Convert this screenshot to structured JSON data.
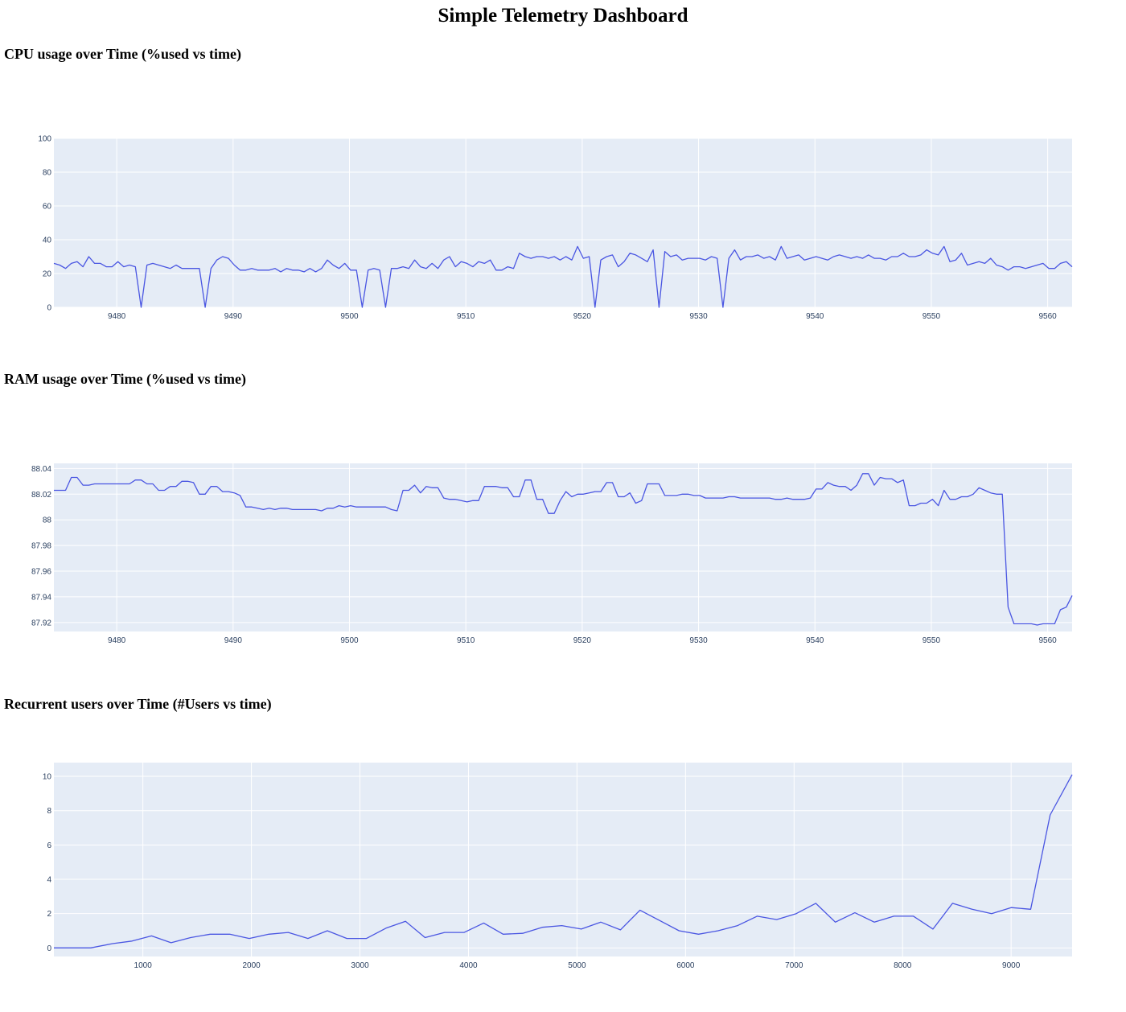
{
  "page_title": "Simple Telemetry Dashboard",
  "colors": {
    "line": "#4a56e2",
    "plot_bg": "#e5ecf6",
    "grid": "#ffffff",
    "tick_text": "#2a3f5f"
  },
  "chart_data": [
    {
      "id": "cpu",
      "type": "line",
      "title": "CPU usage over Time (%used vs time)",
      "xlim": [
        9474.6,
        9562.1
      ],
      "ylim": [
        0,
        100
      ],
      "xticks": [
        9480,
        9490,
        9500,
        9510,
        9520,
        9530,
        9540,
        9550,
        9560
      ],
      "xtick_labels": [
        "9480",
        "9490",
        "9500",
        "9510",
        "9520",
        "9530",
        "9540",
        "9550",
        "9560"
      ],
      "yticks": [
        0,
        20,
        40,
        60,
        80,
        100
      ],
      "ytick_labels": [
        "0",
        "20",
        "40",
        "60",
        "80",
        "100"
      ],
      "grid": true,
      "x": [
        9474.6,
        9475.1,
        9475.6,
        9476.1,
        9476.6,
        9477.1,
        9477.6,
        9478.1,
        9478.6,
        9479.1,
        9479.6,
        9480.1,
        9480.6,
        9481.1,
        9481.6,
        9482.1,
        9482.6,
        9483.1,
        9483.6,
        9484.1,
        9484.6,
        9485.1,
        9485.6,
        9486.1,
        9486.6,
        9487.1,
        9487.6,
        9488.1,
        9488.6,
        9489.1,
        9489.6,
        9490.1,
        9490.6,
        9491.1,
        9491.6,
        9492.1,
        9492.6,
        9493.1,
        9493.6,
        9494.1,
        9494.6,
        9495.1,
        9495.6,
        9496.1,
        9496.6,
        9497.1,
        9497.6,
        9498.1,
        9498.6,
        9499.1,
        9499.6,
        9500.1,
        9500.6,
        9501.1,
        9501.6,
        9502.1,
        9502.6,
        9503.1,
        9503.6,
        9504.1,
        9504.6,
        9505.1,
        9505.6,
        9506.1,
        9506.6,
        9507.1,
        9507.6,
        9508.1,
        9508.6,
        9509.1,
        9509.6,
        9510.1,
        9510.6,
        9511.1,
        9511.6,
        9512.1,
        9512.6,
        9513.1,
        9513.6,
        9514.1,
        9514.6,
        9515.1,
        9515.6,
        9516.1,
        9516.6,
        9517.1,
        9517.6,
        9518.1,
        9518.6,
        9519.1,
        9519.6,
        9520.1,
        9520.6,
        9521.1,
        9521.6,
        9522.1,
        9522.6,
        9523.1,
        9523.6,
        9524.1,
        9524.6,
        9525.1,
        9525.6,
        9526.1,
        9526.6,
        9527.1,
        9527.6,
        9528.1,
        9528.6,
        9529.1,
        9529.6,
        9530.1,
        9530.6,
        9531.1,
        9531.6,
        9532.1,
        9532.6,
        9533.1,
        9533.6,
        9534.1,
        9534.6,
        9535.1,
        9535.6,
        9536.1,
        9536.6,
        9537.1,
        9537.6,
        9538.1,
        9538.6,
        9539.1,
        9539.6,
        9540.1,
        9540.6,
        9541.1,
        9541.6,
        9542.1,
        9542.6,
        9543.1,
        9543.6,
        9544.1,
        9544.6,
        9545.1,
        9545.6,
        9546.1,
        9546.6,
        9547.1,
        9547.6,
        9548.1,
        9548.6,
        9549.1,
        9549.6,
        9550.1,
        9550.6,
        9551.1,
        9551.6,
        9552.1,
        9552.6,
        9553.1,
        9553.6,
        9554.1,
        9554.6,
        9555.1,
        9555.6,
        9556.1,
        9556.6,
        9557.1,
        9557.6,
        9558.1,
        9558.6,
        9559.1,
        9559.6,
        9560.1,
        9560.6,
        9561.1,
        9561.6,
        9562.1
      ],
      "y": [
        26,
        25,
        23,
        26,
        27,
        24,
        30,
        26,
        26,
        24,
        24,
        27,
        24,
        25,
        24,
        0,
        25,
        26,
        25,
        24,
        23,
        25,
        23,
        23,
        23,
        23,
        0,
        23,
        28,
        30,
        29,
        25,
        22,
        22,
        23,
        22,
        22,
        22,
        23,
        21,
        23,
        22,
        22,
        21,
        23,
        21,
        23,
        28,
        25,
        23,
        26,
        22,
        22,
        0,
        22,
        23,
        22,
        0,
        23,
        23,
        24,
        23,
        28,
        24,
        23,
        26,
        23,
        28,
        30,
        24,
        27,
        26,
        24,
        27,
        26,
        28,
        22,
        22,
        24,
        23,
        32,
        30,
        29,
        30,
        30,
        29,
        30,
        28,
        30,
        28,
        36,
        29,
        30,
        0,
        28,
        30,
        31,
        24,
        27,
        32,
        31,
        29,
        27,
        34,
        0,
        33,
        30,
        31,
        28,
        29,
        29,
        29,
        28,
        30,
        29,
        0,
        29,
        34,
        28,
        30,
        30,
        31,
        29,
        30,
        28,
        36,
        29,
        30,
        31,
        28,
        29,
        30,
        29,
        28,
        30,
        31,
        30,
        29,
        30,
        29,
        31,
        29,
        29,
        28,
        30,
        30,
        32,
        30,
        30,
        31,
        34,
        32,
        31,
        36,
        27,
        28,
        32,
        25,
        26,
        27,
        26,
        29,
        25,
        24,
        22,
        24,
        24,
        23,
        24,
        25,
        26,
        23,
        23,
        26,
        27,
        24
      ]
    },
    {
      "id": "ram",
      "type": "line",
      "title": "RAM usage over Time (%used vs time)",
      "xlim": [
        9474.6,
        9562.1
      ],
      "ylim": [
        87.913,
        88.044
      ],
      "xticks": [
        9480,
        9490,
        9500,
        9510,
        9520,
        9530,
        9540,
        9550,
        9560
      ],
      "xtick_labels": [
        "9480",
        "9490",
        "9500",
        "9510",
        "9520",
        "9530",
        "9540",
        "9550",
        "9560"
      ],
      "yticks": [
        87.92,
        87.94,
        87.96,
        87.98,
        88.0,
        88.02,
        88.04
      ],
      "ytick_labels": [
        "87.92",
        "87.94",
        "87.96",
        "87.98",
        "88",
        "88.02",
        "88.04"
      ],
      "grid": true,
      "x": [
        9474.6,
        9475.6,
        9476.1,
        9476.6,
        9477.1,
        9477.6,
        9478.1,
        9480.1,
        9480.6,
        9481.1,
        9481.6,
        9482.1,
        9482.6,
        9483.1,
        9483.6,
        9484.1,
        9484.6,
        9485.1,
        9485.6,
        9486.1,
        9486.6,
        9487.1,
        9487.6,
        9488.1,
        9488.6,
        9489.1,
        9489.6,
        9490.1,
        9490.6,
        9491.1,
        9491.6,
        9492.1,
        9492.6,
        9493.1,
        9493.6,
        9494.1,
        9494.6,
        9495.1,
        9495.6,
        9496.1,
        9496.6,
        9497.1,
        9497.6,
        9498.1,
        9498.6,
        9499.1,
        9499.6,
        9500.1,
        9500.6,
        9501.1,
        9501.6,
        9502.1,
        9502.6,
        9503.1,
        9503.6,
        9504.1,
        9504.6,
        9505.1,
        9505.6,
        9506.1,
        9506.6,
        9507.1,
        9507.6,
        9508.1,
        9508.6,
        9509.1,
        9509.6,
        9510.1,
        9510.6,
        9511.1,
        9511.6,
        9512.1,
        9512.6,
        9513.1,
        9513.6,
        9514.1,
        9514.6,
        9515.1,
        9515.6,
        9516.1,
        9516.6,
        9517.1,
        9517.6,
        9518.1,
        9518.6,
        9519.1,
        9519.6,
        9520.1,
        9520.6,
        9521.1,
        9521.6,
        9522.1,
        9522.6,
        9523.1,
        9523.6,
        9524.1,
        9524.6,
        9525.1,
        9525.6,
        9526.1,
        9526.6,
        9527.1,
        9527.6,
        9528.1,
        9528.6,
        9529.1,
        9529.6,
        9530.1,
        9530.6,
        9531.1,
        9531.6,
        9532.1,
        9532.6,
        9533.1,
        9533.6,
        9534.1,
        9534.6,
        9535.1,
        9535.6,
        9536.1,
        9536.6,
        9537.1,
        9537.6,
        9538.1,
        9538.6,
        9539.1,
        9539.6,
        9540.1,
        9540.6,
        9541.1,
        9541.6,
        9542.1,
        9542.6,
        9543.1,
        9543.6,
        9544.1,
        9544.6,
        9545.1,
        9545.6,
        9546.1,
        9546.6,
        9547.1,
        9547.6,
        9548.1,
        9548.6,
        9549.1,
        9549.6,
        9550.1,
        9550.6,
        9551.1,
        9551.6,
        9552.1,
        9552.6,
        9553.1,
        9553.6,
        9554.1,
        9554.6,
        9555.1,
        9555.6,
        9556.1,
        9556.6,
        9557.1,
        9557.6,
        9558.1,
        9558.6,
        9559.1,
        9559.6,
        9560.1,
        9560.6,
        9561.1,
        9561.6,
        9562.1
      ],
      "y": [
        88.023,
        88.023,
        88.033,
        88.033,
        88.027,
        88.027,
        88.028,
        88.028,
        88.028,
        88.028,
        88.031,
        88.031,
        88.028,
        88.028,
        88.023,
        88.023,
        88.026,
        88.026,
        88.03,
        88.03,
        88.029,
        88.02,
        88.02,
        88.026,
        88.026,
        88.022,
        88.022,
        88.021,
        88.019,
        88.01,
        88.01,
        88.009,
        88.008,
        88.009,
        88.008,
        88.009,
        88.009,
        88.008,
        88.008,
        88.008,
        88.008,
        88.008,
        88.007,
        88.009,
        88.009,
        88.011,
        88.01,
        88.011,
        88.01,
        88.01,
        88.01,
        88.01,
        88.01,
        88.01,
        88.008,
        88.007,
        88.023,
        88.023,
        88.027,
        88.021,
        88.026,
        88.025,
        88.025,
        88.017,
        88.016,
        88.016,
        88.015,
        88.014,
        88.015,
        88.015,
        88.026,
        88.026,
        88.026,
        88.025,
        88.025,
        88.018,
        88.018,
        88.031,
        88.031,
        88.016,
        88.016,
        88.005,
        88.005,
        88.015,
        88.022,
        88.018,
        88.02,
        88.02,
        88.021,
        88.022,
        88.022,
        88.029,
        88.029,
        88.018,
        88.018,
        88.021,
        88.013,
        88.015,
        88.028,
        88.028,
        88.028,
        88.019,
        88.019,
        88.019,
        88.02,
        88.02,
        88.019,
        88.019,
        88.017,
        88.017,
        88.017,
        88.017,
        88.018,
        88.018,
        88.017,
        88.017,
        88.017,
        88.017,
        88.017,
        88.017,
        88.016,
        88.016,
        88.017,
        88.016,
        88.016,
        88.016,
        88.017,
        88.024,
        88.024,
        88.029,
        88.027,
        88.026,
        88.026,
        88.023,
        88.027,
        88.036,
        88.036,
        88.027,
        88.033,
        88.032,
        88.032,
        88.029,
        88.031,
        88.011,
        88.011,
        88.013,
        88.013,
        88.016,
        88.011,
        88.023,
        88.016,
        88.016,
        88.018,
        88.018,
        88.02,
        88.025,
        88.023,
        88.021,
        88.02,
        88.02,
        87.932,
        87.919,
        87.919,
        87.919,
        87.919,
        87.918,
        87.919,
        87.919,
        87.919,
        87.93,
        87.932,
        87.941
      ]
    },
    {
      "id": "users",
      "type": "line",
      "title": "Recurrent users over Time (#Users vs time)",
      "xlim": [
        180,
        9562
      ],
      "ylim": [
        -0.5,
        10.8
      ],
      "xticks": [
        1000,
        2000,
        3000,
        4000,
        5000,
        6000,
        7000,
        8000,
        9000
      ],
      "xtick_labels": [
        "1000",
        "2000",
        "3000",
        "4000",
        "5000",
        "6000",
        "7000",
        "8000",
        "9000"
      ],
      "yticks": [
        0,
        2,
        4,
        6,
        8,
        10
      ],
      "ytick_labels": [
        "0",
        "2",
        "4",
        "6",
        "8",
        "10"
      ],
      "grid": true,
      "x": [
        180,
        520,
        720,
        900,
        1080,
        1260,
        1440,
        1620,
        1800,
        1980,
        2160,
        2340,
        2520,
        2700,
        2880,
        3060,
        3240,
        3420,
        3600,
        3780,
        3960,
        4140,
        4320,
        4500,
        4680,
        4860,
        5040,
        5220,
        5400,
        5580,
        5760,
        5940,
        6120,
        6300,
        6480,
        6660,
        6840,
        7020,
        7200,
        7380,
        7560,
        7740,
        7920,
        8100,
        8280,
        8460,
        8640,
        8820,
        9000,
        9180,
        9360,
        9562
      ],
      "y": [
        0,
        0,
        0.25,
        0.4,
        0.7,
        0.3,
        0.6,
        0.8,
        0.8,
        0.55,
        0.8,
        0.9,
        0.55,
        1.0,
        0.55,
        0.55,
        1.15,
        1.55,
        0.6,
        0.9,
        0.9,
        1.45,
        0.8,
        0.85,
        1.2,
        1.3,
        1.1,
        1.5,
        1.05,
        2.2,
        1.6,
        1.0,
        0.8,
        1.0,
        1.3,
        1.85,
        1.65,
        2.0,
        2.6,
        1.5,
        2.05,
        1.5,
        1.85,
        1.85,
        1.1,
        2.6,
        2.25,
        2.0,
        2.35,
        2.25,
        7.75,
        10.1
      ]
    }
  ]
}
